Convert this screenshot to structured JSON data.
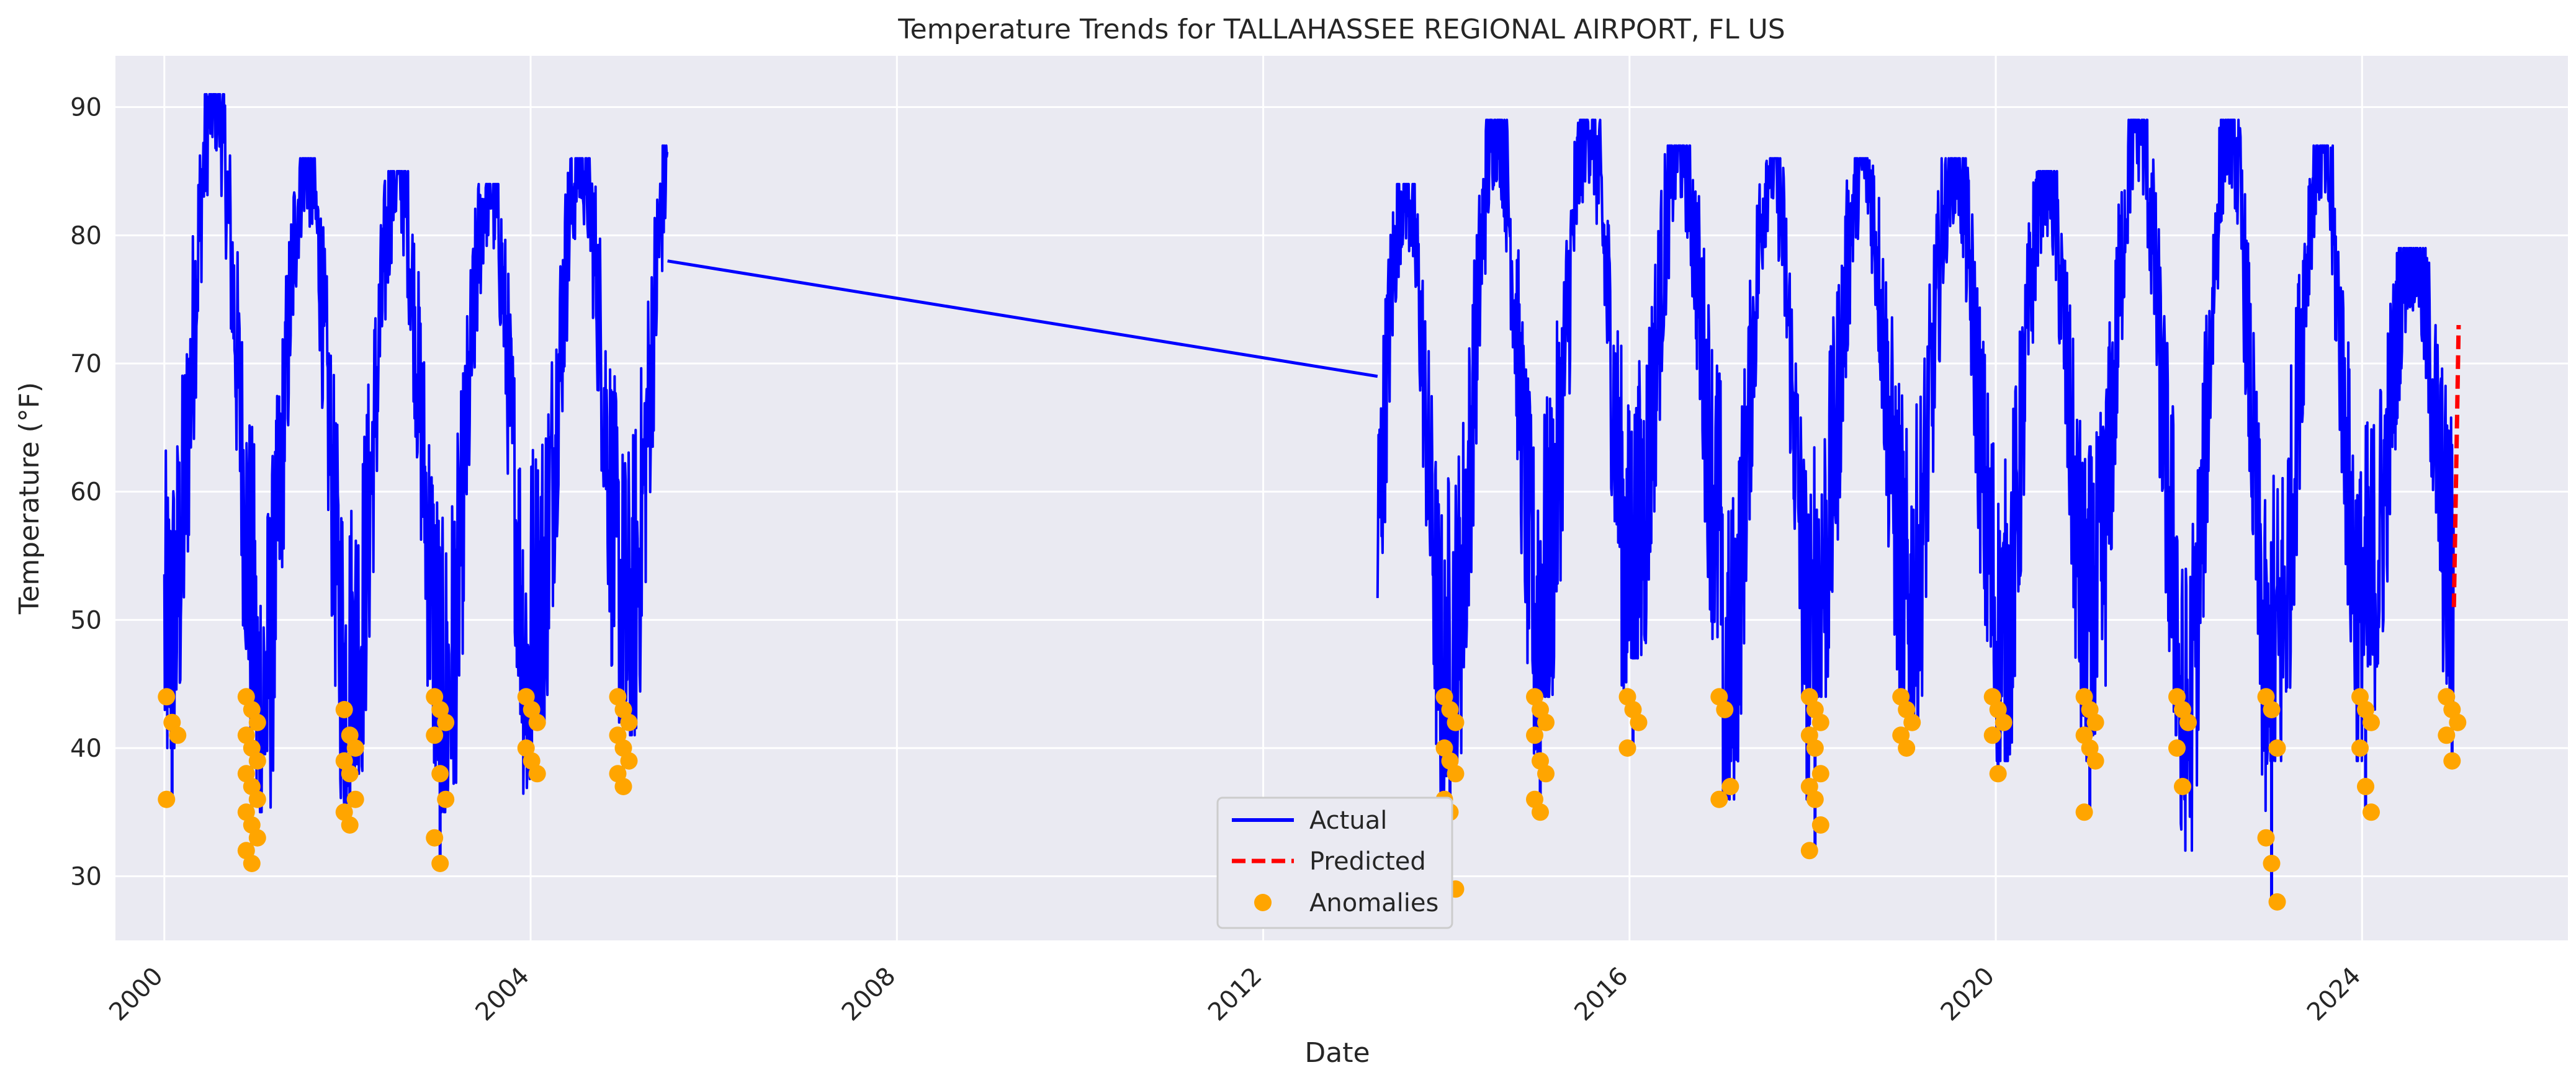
{
  "chart_data": {
    "type": "line",
    "title": "Temperature Trends for TALLAHASSEE REGIONAL AIRPORT, FL US",
    "xlabel": "Date",
    "ylabel": "Temperature (°F)",
    "xlim": [
      "1999-06-20",
      "2026-04-01"
    ],
    "ylim": [
      25,
      94
    ],
    "x_ticks": [
      "2000",
      "2004",
      "2008",
      "2012",
      "2016",
      "2020",
      "2024"
    ],
    "y_ticks": [
      30,
      40,
      50,
      60,
      70,
      80,
      90
    ],
    "grid": true,
    "legend": {
      "placement": "bottom-center",
      "entries": [
        "Actual",
        "Predicted",
        "Anomalies"
      ]
    },
    "colors": {
      "actual": "#0000ff",
      "predicted": "#ff0000",
      "anomalies": "#ffa500",
      "plot_bg": "#eaeaf2",
      "grid": "#ffffff"
    },
    "series": [
      {
        "name": "Actual",
        "style": "solid",
        "segments": [
          {
            "start": "2000-01-01",
            "end": "2005-06-30",
            "peaks": [
              91,
              86,
              85,
              84,
              86,
              87
            ],
            "troughs": [
              36,
              31,
              34,
              31,
              38,
              37
            ]
          },
          {
            "start": "2013-04-01",
            "end": "2024-12-31",
            "peaks": [
              84,
              89,
              89,
              87,
              86,
              86,
              86,
              85,
              89,
              89,
              87,
              79
            ],
            "troughs": [
              29,
              35,
              40,
              43,
              32,
              40,
              38,
              35,
              37,
              28,
              35,
              39
            ]
          }
        ],
        "gap_line": [
          {
            "date": "2005-06-30",
            "value": 78
          },
          {
            "date": "2013-04-01",
            "value": 69
          }
        ]
      },
      {
        "name": "Predicted",
        "style": "dashed",
        "points": [
          {
            "date": "2025-01-01",
            "value": 51
          },
          {
            "date": "2025-01-20",
            "value": 73
          }
        ]
      },
      {
        "name": "Anomalies",
        "style": "scatter",
        "clusters": [
          {
            "date": "2000-02-01",
            "values": [
              44,
              42,
              41,
              36
            ]
          },
          {
            "date": "2000-12-15",
            "values": [
              44,
              43,
              42,
              41,
              40,
              39,
              38,
              37,
              36,
              35,
              34,
              33,
              32,
              31
            ]
          },
          {
            "date": "2002-01-10",
            "values": [
              43,
              41,
              40,
              39,
              38,
              36,
              35,
              34
            ]
          },
          {
            "date": "2003-01-05",
            "values": [
              44,
              43,
              42,
              41,
              38,
              36,
              33,
              31
            ]
          },
          {
            "date": "2004-01-05",
            "values": [
              44,
              43,
              42,
              40,
              39,
              38
            ]
          },
          {
            "date": "2005-01-05",
            "values": [
              44,
              43,
              42,
              41,
              40,
              39,
              38,
              37
            ]
          },
          {
            "date": "2014-01-15",
            "values": [
              44,
              43,
              42,
              40,
              39,
              38,
              36,
              35,
              29
            ]
          },
          {
            "date": "2015-01-10",
            "values": [
              44,
              43,
              42,
              41,
              39,
              38,
              36,
              35
            ]
          },
          {
            "date": "2016-01-15",
            "values": [
              44,
              43,
              42,
              40
            ]
          },
          {
            "date": "2017-01-15",
            "values": [
              44,
              43,
              37,
              36
            ]
          },
          {
            "date": "2018-01-10",
            "values": [
              44,
              43,
              42,
              41,
              40,
              38,
              37,
              36,
              34,
              32
            ]
          },
          {
            "date": "2019-01-10",
            "values": [
              44,
              43,
              42,
              41,
              40
            ]
          },
          {
            "date": "2020-01-10",
            "values": [
              44,
              43,
              42,
              41,
              38
            ]
          },
          {
            "date": "2021-01-10",
            "values": [
              44,
              43,
              42,
              41,
              40,
              39,
              35
            ]
          },
          {
            "date": "2022-01-15",
            "values": [
              44,
              43,
              42,
              40,
              37
            ]
          },
          {
            "date": "2023-01-05",
            "values": [
              44,
              43,
              40,
              33,
              31,
              28
            ]
          },
          {
            "date": "2024-01-15",
            "values": [
              44,
              43,
              42,
              40,
              37,
              35
            ]
          },
          {
            "date": "2024-12-25",
            "values": [
              44,
              43,
              42,
              41,
              39
            ]
          }
        ]
      }
    ]
  }
}
